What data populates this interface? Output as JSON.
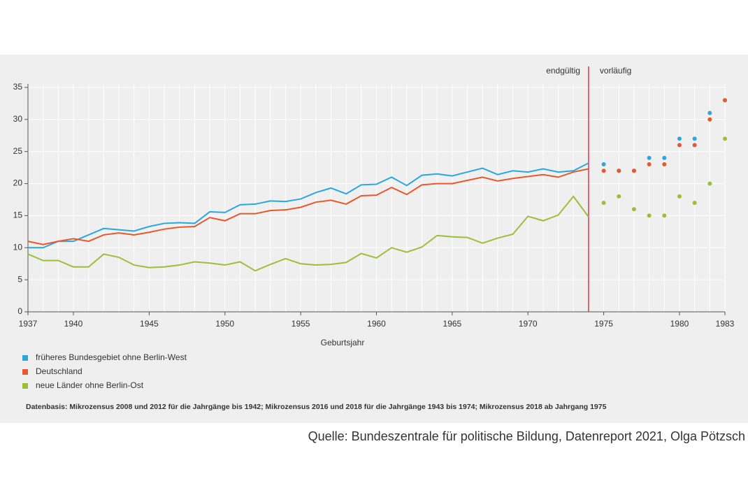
{
  "chart_data": {
    "type": "line",
    "x_label": "Geburtsjahr",
    "x": [
      1937,
      1938,
      1939,
      1940,
      1941,
      1942,
      1943,
      1944,
      1945,
      1946,
      1947,
      1948,
      1949,
      1950,
      1951,
      1952,
      1953,
      1954,
      1955,
      1956,
      1957,
      1958,
      1959,
      1960,
      1961,
      1962,
      1963,
      1964,
      1965,
      1966,
      1967,
      1968,
      1969,
      1970,
      1971,
      1972,
      1973,
      1974,
      1975,
      1976,
      1977,
      1978,
      1979,
      1980,
      1981,
      1982,
      1983
    ],
    "series": [
      {
        "name": "früheres Bundesgebiet ohne Berlin-West",
        "color": "#2aa7e0",
        "values": [
          10,
          10,
          11,
          11,
          12,
          13,
          12.8,
          12.6,
          13.3,
          13.8,
          13.9,
          13.8,
          15.6,
          15.5,
          16.7,
          16.8,
          17.3,
          17.2,
          17.6,
          18.6,
          19.3,
          18.4,
          19.8,
          19.9,
          21,
          19.7,
          21.3,
          21.5,
          21.2,
          21.8,
          22.4,
          21.4,
          22,
          21.8,
          22.3,
          21.8,
          22,
          23.2,
          23,
          22,
          22,
          24,
          24,
          27,
          27,
          31,
          33
        ]
      },
      {
        "name": "Deutschland",
        "color": "#e8582a",
        "values": [
          11,
          10.5,
          11,
          11.4,
          11,
          12,
          12.3,
          12,
          12.4,
          12.9,
          13.2,
          13.3,
          14.7,
          14.2,
          15.3,
          15.3,
          15.8,
          15.9,
          16.3,
          17.1,
          17.4,
          16.8,
          18.1,
          18.2,
          19.4,
          18.3,
          19.8,
          20,
          20,
          20.5,
          21,
          20.4,
          20.8,
          21.1,
          21.4,
          21,
          21.8,
          22.3,
          22,
          22,
          22,
          23,
          23,
          26,
          26,
          30,
          33
        ]
      },
      {
        "name": "neue Länder ohne Berlin-Ost",
        "color": "#9cbf38",
        "values": [
          9,
          8,
          8,
          7,
          7,
          9,
          8.5,
          7.3,
          6.9,
          7,
          7.3,
          7.8,
          7.6,
          7.3,
          7.8,
          6.4,
          7.4,
          8.3,
          7.5,
          7.3,
          7.4,
          7.7,
          9.1,
          8.4,
          10,
          9.3,
          10.1,
          11.9,
          11.7,
          11.6,
          10.7,
          11.5,
          12.1,
          14.9,
          14.2,
          15.1,
          18,
          14.8,
          17,
          18,
          16,
          15,
          15,
          18,
          17,
          20,
          27
        ]
      }
    ],
    "xlim": [
      1937,
      1983
    ],
    "xticks": [
      1937,
      1940,
      1945,
      1950,
      1955,
      1960,
      1965,
      1970,
      1975,
      1980,
      1983
    ],
    "ylim": [
      0,
      35
    ],
    "yticks": [
      0,
      5,
      10,
      15,
      20,
      25,
      30,
      35
    ],
    "grid": true,
    "divider": {
      "x": 1974,
      "color": "#e8314a",
      "left_label": "endgültig",
      "right_label": "vorläufig"
    },
    "footnote": "Datenbasis: Mikrozensus 2008 und 2012 für die Jahrgänge bis 1942; Mikrozensus 2016 und 2018 für die Jahrgänge 1943 bis 1974; Mikrozensus 2018 ab Jahrgang 1975",
    "source": "Quelle: Bundeszentrale für politische Bildung, Datenreport 2021, Olga Pötzsch"
  }
}
